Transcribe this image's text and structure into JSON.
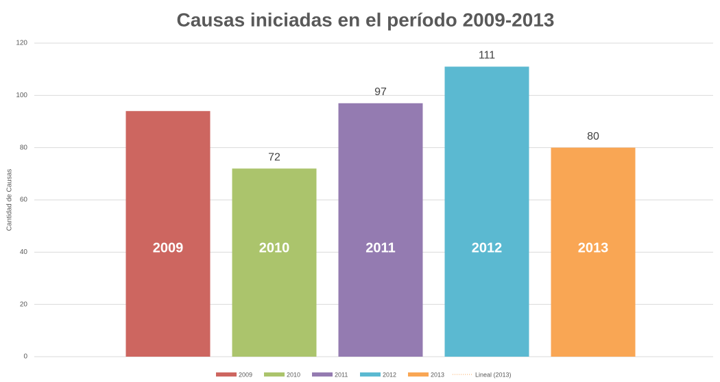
{
  "chart_data": {
    "type": "bar",
    "title": "Causas iniciadas en el período 2009-2013",
    "y_label": "Cantidad de Causas",
    "categories": [
      "2009",
      "2010",
      "2011",
      "2012",
      "2013"
    ],
    "values": [
      94,
      72,
      97,
      111,
      80
    ],
    "value_labels": [
      null,
      "72",
      "97",
      "111",
      "80"
    ],
    "colors": [
      "#cd6660",
      "#abc46c",
      "#947bb1",
      "#5bb9d1",
      "#f9a654"
    ],
    "trendline": {
      "name": "Lineal (2013)",
      "color": "#f9a654"
    },
    "ylim": [
      0,
      120
    ],
    "yticks": [
      0,
      20,
      40,
      60,
      80,
      100,
      120
    ],
    "grid": true
  }
}
